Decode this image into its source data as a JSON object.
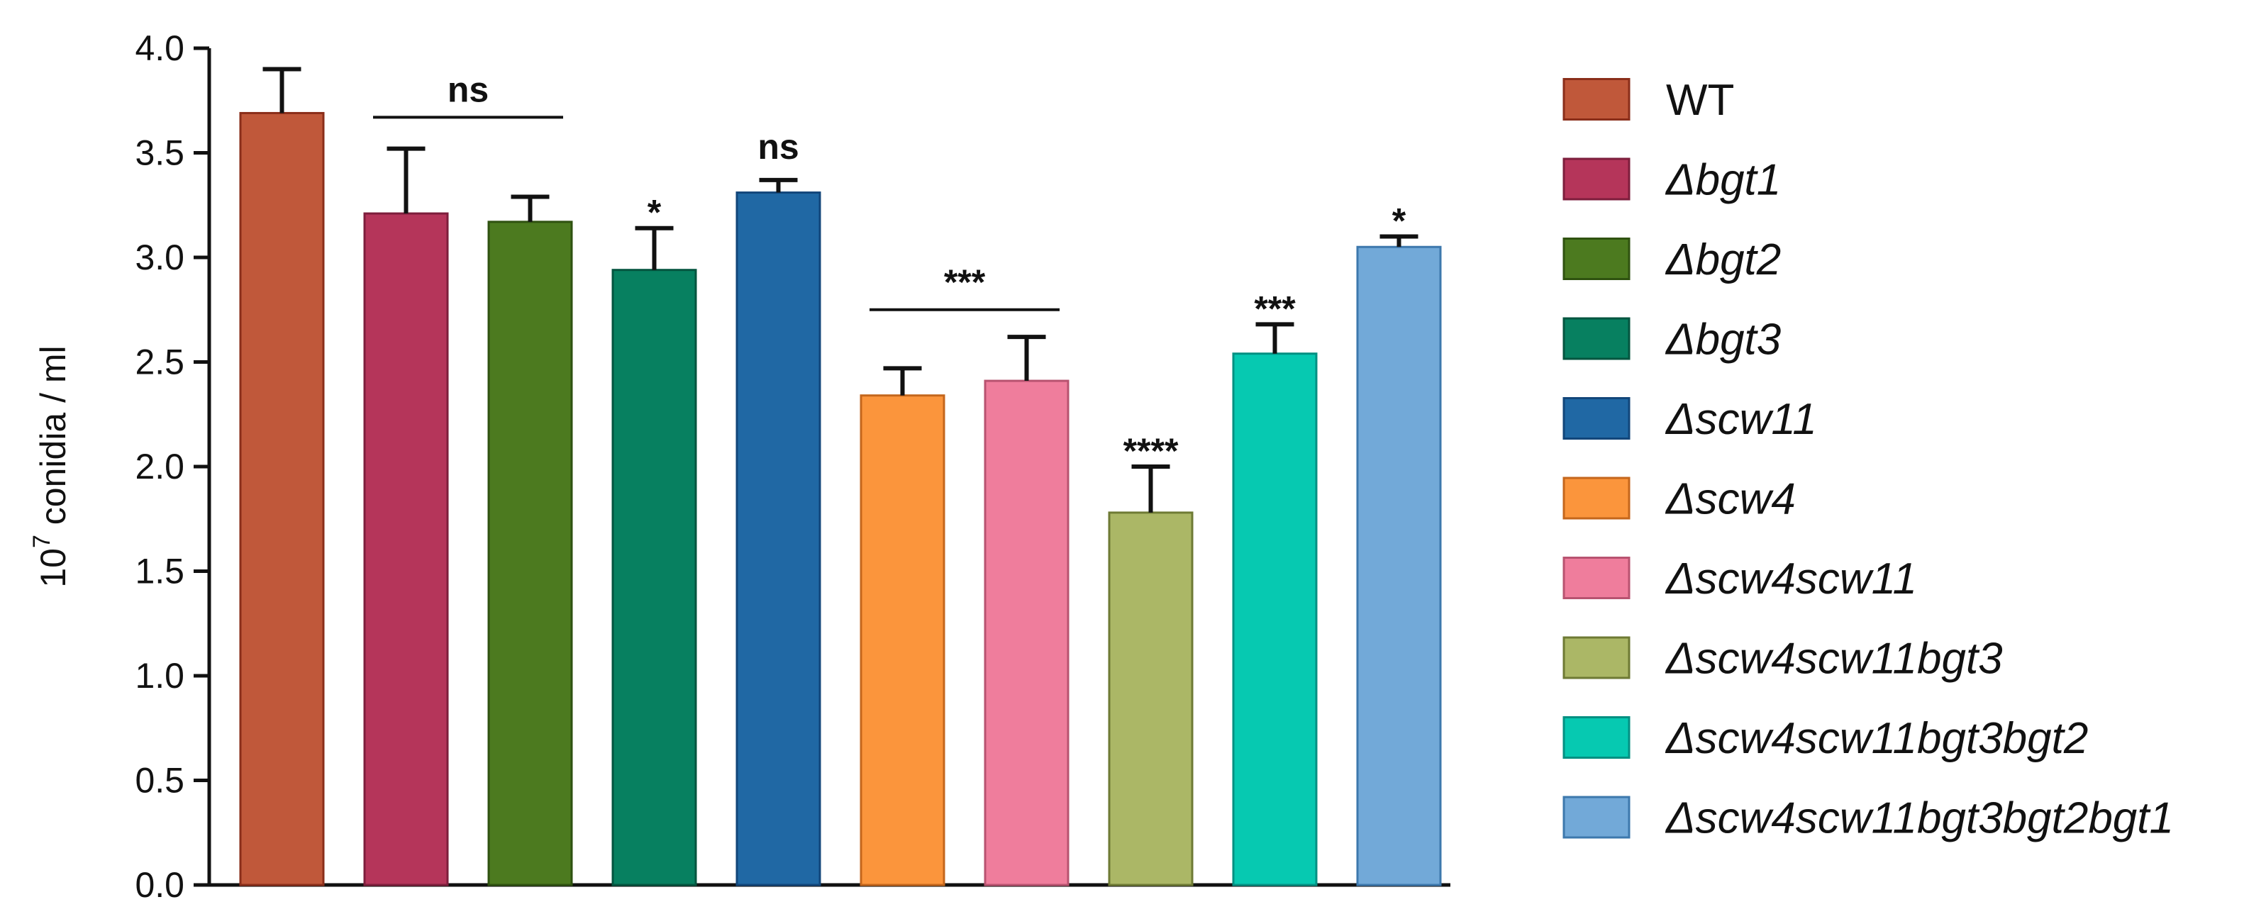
{
  "chart_data": {
    "type": "bar",
    "ylabel_base": "10",
    "ylabel_exp": "7",
    "ylabel_text": " conidia / ml",
    "ylim": [
      0,
      4.0
    ],
    "yticks": [
      "0.0",
      "0.5",
      "1.0",
      "1.5",
      "2.0",
      "2.5",
      "3.0",
      "3.5",
      "4.0"
    ],
    "grid": false,
    "legend_position": "right",
    "categories": [
      "WT",
      "Δbgt1",
      "Δbgt2",
      "Δbgt3",
      "Δscw11",
      "Δscw4",
      "Δscw4scw11",
      "Δscw4scw11bgt3",
      "Δscw4scw11bgt3bgt2",
      "Δscw4scw11bgt3bgt2bgt1"
    ],
    "values": [
      3.69,
      3.21,
      3.17,
      2.94,
      3.31,
      2.34,
      2.41,
      1.78,
      2.54,
      3.05
    ],
    "errors": [
      0.21,
      0.31,
      0.12,
      0.2,
      0.06,
      0.13,
      0.21,
      0.22,
      0.14,
      0.05
    ],
    "colors": [
      "#c0583a",
      "#b5355a",
      "#4c7a1f",
      "#078060",
      "#2068a4",
      "#fb953c",
      "#ef7d9c",
      "#abb766",
      "#06c9b1",
      "#72a9d8"
    ],
    "edge_colors": [
      "#8a2e1a",
      "#7d1e3c",
      "#2f5210",
      "#04553f",
      "#12467a",
      "#c4661c",
      "#b85370",
      "#6e7a34",
      "#049082",
      "#3d78ad"
    ],
    "italic_labels": [
      false,
      true,
      true,
      true,
      true,
      true,
      true,
      true,
      true,
      true
    ],
    "annotations": [
      {
        "text": "ns",
        "from": 1,
        "to": 2,
        "line": true,
        "y": 3.67
      },
      {
        "text": "*",
        "at": 3,
        "line": false
      },
      {
        "text": "ns",
        "at": 4,
        "line": false
      },
      {
        "text": "***",
        "from": 5,
        "to": 6,
        "line": true,
        "y": 2.75
      },
      {
        "text": "****",
        "at": 7,
        "line": false
      },
      {
        "text": "***",
        "at": 8,
        "line": false
      },
      {
        "text": "*",
        "at": 9,
        "line": false
      }
    ]
  }
}
